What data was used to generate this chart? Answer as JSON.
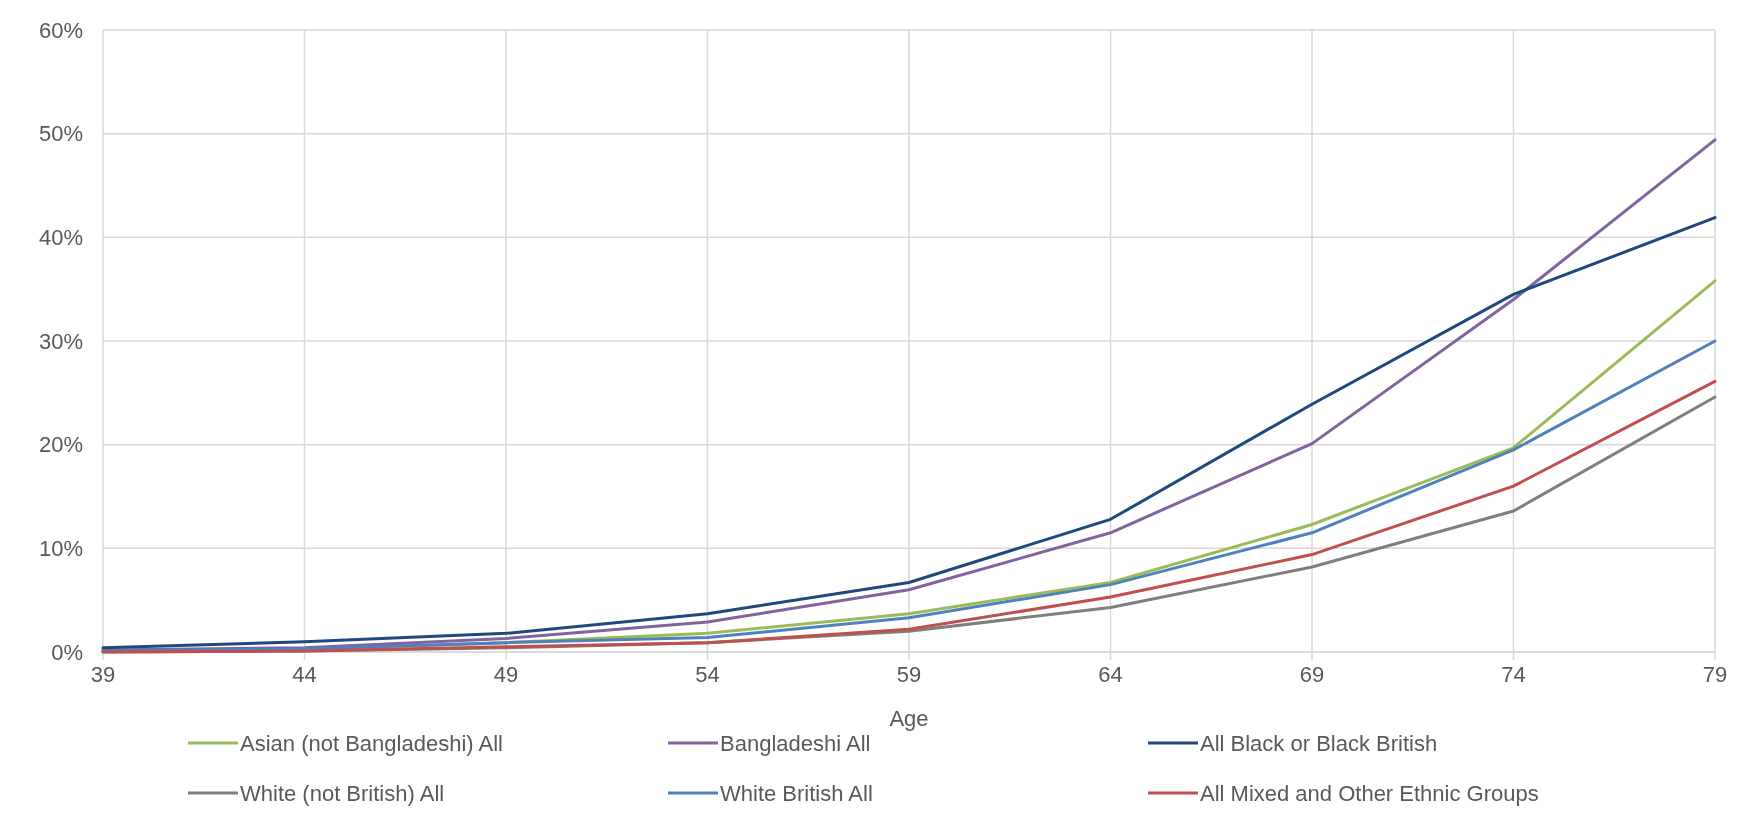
{
  "chart_data": {
    "type": "line",
    "xlabel": "Age",
    "x": [
      39,
      44,
      49,
      54,
      59,
      64,
      69,
      74,
      79
    ],
    "xlim": [
      39,
      79
    ],
    "xticks": [
      39,
      44,
      49,
      54,
      59,
      64,
      69,
      74,
      79
    ],
    "ylim": [
      0,
      0.6
    ],
    "yticks": [
      {
        "value": 0,
        "label": "0%"
      },
      {
        "value": 0.1,
        "label": "10%"
      },
      {
        "value": 0.2,
        "label": "20%"
      },
      {
        "value": 0.3,
        "label": "30%"
      },
      {
        "value": 0.4,
        "label": "40%"
      },
      {
        "value": 0.5,
        "label": "50%"
      },
      {
        "value": 0.6,
        "label": "60%"
      }
    ],
    "grid": true,
    "legend": "bottom",
    "marker": "none",
    "line_style": "solid",
    "series": [
      {
        "name": "Asian (not Bangladeshi) All",
        "color": "#9bbb59",
        "values": [
          0.001,
          0.003,
          0.009,
          0.018,
          0.037,
          0.067,
          0.123,
          0.197,
          0.358
        ]
      },
      {
        "name": "Bangladeshi All",
        "color": "#8064a2",
        "values": [
          0.002,
          0.004,
          0.013,
          0.029,
          0.06,
          0.115,
          0.201,
          0.34,
          0.494
        ]
      },
      {
        "name": "All Black or Black British",
        "color": "#1f497d",
        "values": [
          0.004,
          0.01,
          0.018,
          0.037,
          0.067,
          0.128,
          0.239,
          0.345,
          0.419
        ]
      },
      {
        "name": "White (not British) All",
        "color": "#7f7f7f",
        "values": [
          0.0,
          0.001,
          0.004,
          0.009,
          0.02,
          0.043,
          0.082,
          0.136,
          0.246
        ]
      },
      {
        "name": "White British All",
        "color": "#4f81bd",
        "values": [
          0.001,
          0.003,
          0.009,
          0.014,
          0.033,
          0.065,
          0.115,
          0.195,
          0.3
        ]
      },
      {
        "name": "All Mixed and Other Ethnic Groups",
        "color": "#c0504d",
        "values": [
          0.0,
          0.001,
          0.005,
          0.009,
          0.022,
          0.053,
          0.094,
          0.16,
          0.261
        ]
      }
    ]
  }
}
